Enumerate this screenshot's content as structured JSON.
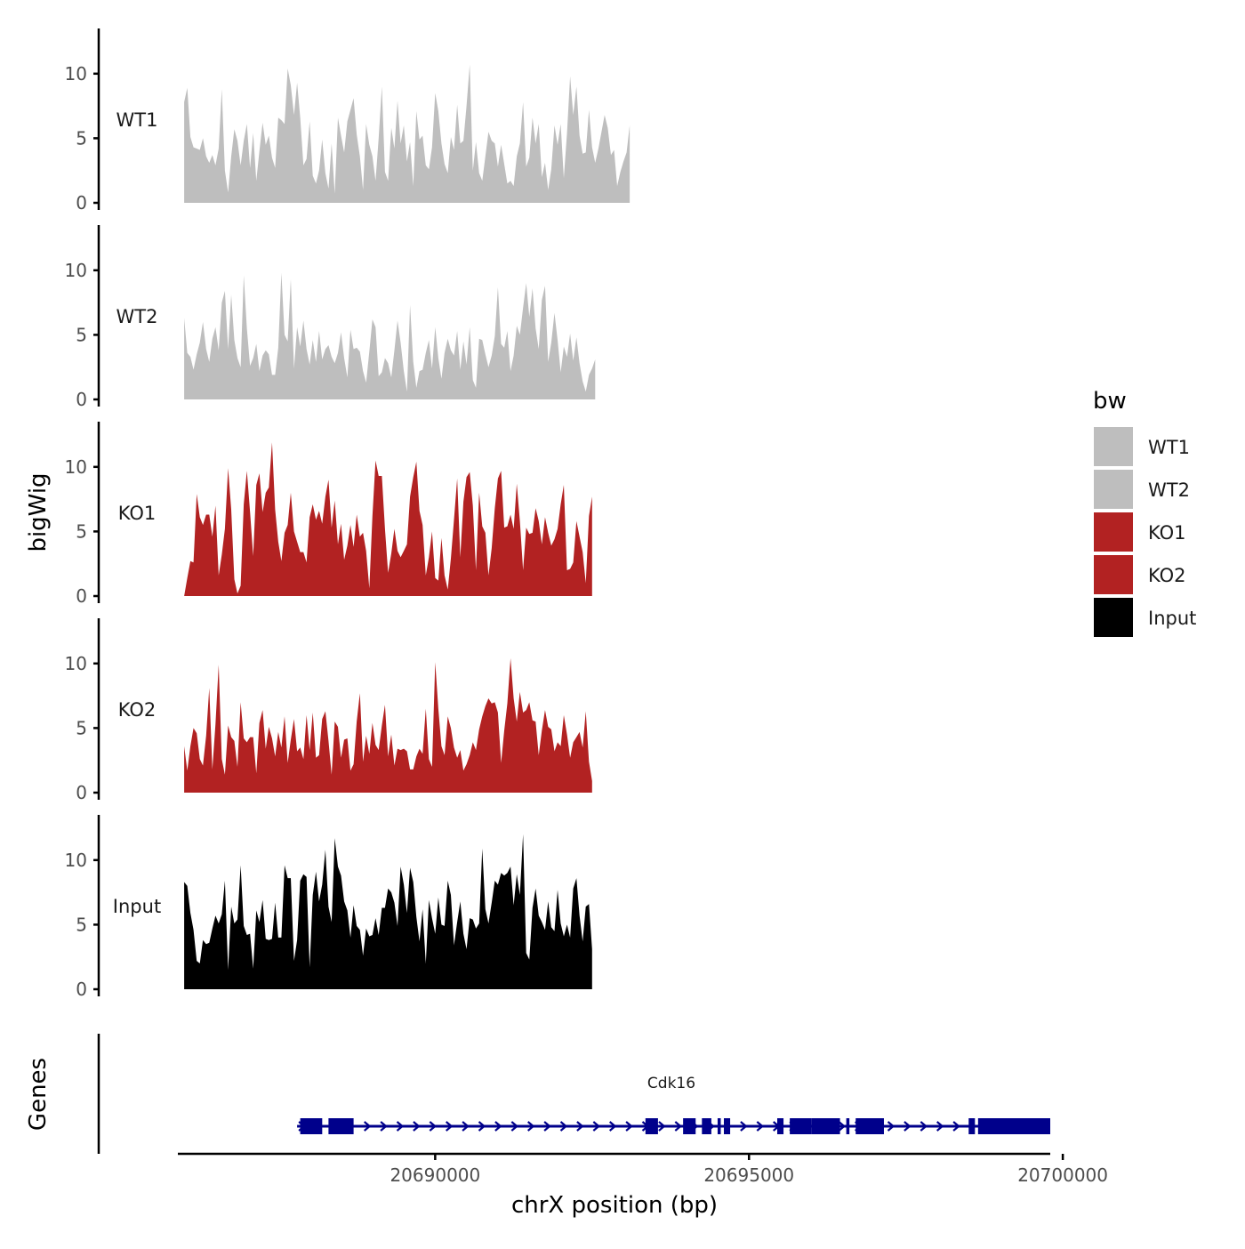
{
  "chart_data": {
    "type": "area",
    "x_axis": {
      "title": "chrX position (bp)",
      "range": [
        20685900,
        20699800
      ],
      "ticks": [
        20690000,
        20695000,
        20700000
      ],
      "tick_labels": [
        "20690000",
        "20695000",
        "20700000"
      ]
    },
    "y_axis": {
      "title": "bigWig",
      "range": [
        0,
        13.5
      ],
      "ticks": [
        0,
        5,
        10
      ],
      "tick_labels": [
        "0",
        "5",
        "10"
      ]
    },
    "genes_axis_title": "Genes",
    "legend": {
      "title": "bw",
      "position": "right",
      "entries": [
        {
          "label": "WT1",
          "color": "#BEBEBE"
        },
        {
          "label": "WT2",
          "color": "#BEBEBE"
        },
        {
          "label": "KO1",
          "color": "#B22222"
        },
        {
          "label": "KO2",
          "color": "#B22222"
        },
        {
          "label": "Input",
          "color": "#000000"
        }
      ]
    },
    "x_start": 20686000,
    "x_step": 50,
    "series": [
      {
        "name": "WT1",
        "color": "#BEBEBE",
        "values": [
          7.8,
          8.9,
          5.1,
          4.3,
          4.2,
          4.1,
          5.0,
          3.6,
          3.1,
          3.7,
          2.9,
          4.2,
          8.8,
          2.5,
          0.8,
          3.6,
          5.7,
          4.8,
          2.9,
          4.8,
          6.1,
          2.7,
          5.4,
          1.7,
          4.0,
          6.2,
          4.5,
          5.2,
          3.5,
          2.7,
          6.6,
          6.4,
          6.1,
          10.4,
          9.1,
          6.8,
          9.3,
          6.6,
          2.9,
          3.4,
          6.3,
          2.1,
          1.5,
          2.5,
          4.9,
          2.3,
          1.1,
          4.6,
          0.7,
          6.6,
          5.2,
          3.9,
          6.3,
          7.2,
          8.1,
          5.3,
          3.6,
          1.0,
          6.1,
          4.5,
          3.6,
          1.7,
          5.0,
          9.0,
          2.4,
          1.7,
          5.8,
          4.2,
          7.9,
          4.6,
          6.0,
          3.2,
          4.7,
          1.3,
          7.1,
          4.9,
          5.2,
          2.9,
          2.6,
          4.3,
          8.5,
          7.1,
          4.6,
          3.0,
          2.3,
          5.1,
          4.1,
          7.6,
          4.6,
          4.8,
          7.5,
          10.7,
          2.5,
          4.7,
          2.3,
          1.7,
          3.6,
          5.5,
          4.8,
          4.6,
          2.8,
          4.5,
          3.0,
          1.5,
          1.7,
          1.3,
          3.6,
          4.6,
          7.8,
          2.8,
          3.5,
          6.6,
          4.6,
          6.1,
          2.0,
          3.1,
          1.0,
          2.6,
          6.0,
          4.5,
          6.1,
          1.9,
          5.4,
          9.8,
          6.8,
          9.0,
          5.2,
          3.8,
          3.9,
          7.2,
          4.3,
          3.1,
          4.2,
          5.5,
          6.8,
          5.8,
          3.7,
          4.1,
          1.3,
          2.4,
          3.2,
          3.9,
          6.0
        ]
      },
      {
        "name": "WT2",
        "color": "#BEBEBE",
        "values": [
          6.3,
          3.6,
          3.3,
          2.3,
          3.5,
          4.4,
          6.0,
          3.9,
          2.9,
          4.7,
          5.6,
          3.8,
          7.5,
          8.4,
          3.9,
          8.1,
          4.6,
          3.2,
          2.5,
          9.6,
          5.5,
          2.6,
          3.2,
          4.3,
          2.2,
          3.4,
          3.8,
          3.5,
          1.9,
          1.9,
          4.0,
          9.8,
          5.0,
          4.5,
          9.3,
          2.4,
          5.6,
          4.1,
          6.1,
          3.9,
          2.7,
          4.6,
          2.9,
          5.3,
          3.1,
          3.9,
          4.2,
          3.3,
          2.8,
          3.6,
          5.2,
          3.2,
          1.7,
          5.4,
          3.9,
          4.0,
          3.7,
          2.2,
          1.3,
          3.7,
          6.2,
          5.6,
          1.8,
          2.1,
          3.2,
          2.8,
          1.7,
          3.8,
          6.1,
          4.4,
          2.2,
          0.6,
          7.3,
          2.9,
          0.9,
          2.2,
          2.3,
          3.6,
          4.6,
          2.4,
          5.6,
          3.2,
          1.6,
          3.6,
          4.7,
          3.8,
          3.4,
          5.3,
          2.3,
          4.5,
          2.7,
          5.6,
          1.5,
          0.9,
          4.7,
          4.6,
          3.5,
          2.5,
          3.4,
          4.9,
          8.7,
          4.3,
          4.0,
          5.3,
          2.2,
          3.4,
          5.7,
          5.0,
          7.1,
          9.0,
          6.4,
          8.6,
          5.5,
          3.9,
          7.7,
          8.8,
          2.9,
          4.4,
          6.7,
          4.6,
          2.1,
          4.1,
          3.3,
          5.1,
          3.0,
          4.8,
          2.8,
          1.4,
          0.6,
          1.9,
          2.4,
          3.1
        ]
      },
      {
        "name": "KO1",
        "color": "#B22222",
        "values": [
          0.0,
          1.4,
          2.7,
          2.6,
          7.9,
          6.1,
          5.5,
          6.3,
          6.3,
          4.6,
          7.0,
          1.6,
          3.2,
          5.2,
          9.9,
          6.7,
          1.3,
          0.2,
          0.8,
          7.1,
          9.7,
          6.5,
          3.1,
          8.6,
          9.5,
          6.5,
          8.0,
          8.4,
          11.9,
          6.7,
          4.2,
          2.7,
          4.9,
          5.5,
          8.0,
          5.0,
          4.2,
          3.4,
          3.4,
          2.6,
          6.1,
          7.1,
          5.9,
          6.6,
          5.6,
          7.7,
          9.0,
          5.3,
          7.4,
          4.0,
          5.6,
          2.8,
          3.9,
          5.5,
          3.8,
          6.3,
          4.6,
          4.9,
          3.5,
          0.6,
          6.2,
          10.5,
          9.3,
          9.3,
          5.2,
          1.8,
          3.3,
          5.2,
          3.5,
          3.0,
          3.5,
          4.0,
          7.7,
          9.2,
          10.4,
          6.6,
          5.5,
          1.6,
          3.0,
          5.0,
          1.4,
          1.2,
          4.5,
          1.6,
          0.5,
          2.9,
          5.9,
          9.1,
          3.0,
          7.3,
          9.2,
          9.6,
          7.0,
          2.0,
          8.0,
          5.4,
          4.9,
          1.6,
          3.7,
          6.8,
          9.1,
          9.7,
          5.3,
          5.4,
          6.3,
          5.2,
          8.7,
          5.8,
          2.0,
          5.3,
          4.8,
          4.9,
          6.8,
          5.8,
          4.0,
          6.1,
          4.9,
          3.9,
          4.4,
          5.2,
          7.1,
          8.6,
          2.0,
          2.1,
          2.6,
          5.8,
          4.6,
          3.4,
          1.0,
          6.2,
          7.7
        ]
      },
      {
        "name": "KO2",
        "color": "#B22222",
        "values": [
          3.6,
          1.7,
          3.6,
          5.0,
          4.6,
          2.6,
          2.1,
          4.4,
          8.1,
          1.8,
          5.3,
          9.9,
          2.6,
          1.4,
          5.2,
          4.3,
          4.0,
          2.0,
          7.0,
          4.2,
          3.9,
          4.3,
          4.3,
          1.5,
          5.4,
          6.4,
          3.4,
          5.1,
          4.2,
          2.8,
          4.7,
          3.5,
          5.9,
          2.3,
          4.1,
          5.7,
          3.2,
          3.5,
          2.6,
          6.0,
          3.3,
          6.2,
          2.7,
          2.9,
          5.7,
          6.3,
          4.0,
          1.4,
          5.5,
          5.1,
          2.7,
          4.1,
          4.2,
          1.7,
          2.2,
          5.5,
          7.7,
          2.4,
          4.4,
          3.0,
          5.4,
          3.7,
          3.3,
          5.2,
          6.8,
          2.8,
          4.5,
          2.1,
          3.4,
          3.3,
          3.4,
          3.2,
          1.8,
          1.8,
          2.8,
          3.4,
          3.0,
          6.5,
          2.6,
          2.0,
          10.1,
          6.5,
          3.6,
          2.9,
          5.9,
          5.0,
          3.5,
          2.7,
          3.3,
          1.7,
          2.2,
          2.9,
          3.9,
          3.3,
          4.9,
          5.9,
          6.7,
          7.3,
          6.9,
          7.0,
          6.2,
          2.3,
          4.8,
          6.9,
          10.4,
          7.3,
          5.5,
          7.8,
          6.2,
          6.4,
          7.0,
          5.6,
          5.5,
          2.9,
          4.8,
          6.4,
          5.1,
          4.9,
          3.2,
          3.9,
          3.6,
          6.0,
          4.5,
          2.7,
          3.9,
          4.3,
          4.7,
          3.5,
          6.3,
          2.4,
          0.9
        ]
      },
      {
        "name": "Input",
        "color": "#000000",
        "values": [
          8.3,
          8.0,
          5.9,
          4.6,
          2.2,
          2.0,
          3.8,
          3.5,
          3.6,
          4.7,
          5.7,
          5.1,
          5.8,
          8.4,
          1.5,
          6.4,
          5.1,
          5.4,
          9.6,
          4.9,
          4.2,
          4.3,
          1.6,
          6.1,
          5.2,
          6.9,
          3.9,
          3.8,
          3.9,
          6.7,
          4.0,
          4.0,
          9.6,
          8.6,
          8.6,
          2.2,
          3.8,
          8.4,
          8.9,
          8.7,
          1.7,
          7.3,
          9.1,
          6.8,
          8.1,
          10.8,
          6.4,
          5.2,
          11.7,
          9.5,
          8.8,
          6.8,
          6.1,
          4.0,
          6.5,
          4.9,
          4.6,
          2.6,
          4.7,
          4.1,
          4.2,
          5.5,
          4.2,
          6.3,
          6.3,
          7.8,
          7.5,
          6.7,
          4.9,
          9.5,
          8.1,
          5.9,
          9.4,
          8.3,
          5.6,
          3.7,
          6.2,
          2.0,
          6.9,
          5.5,
          4.3,
          7.1,
          5.0,
          4.9,
          8.4,
          7.3,
          3.4,
          5.2,
          6.8,
          4.3,
          3.1,
          5.5,
          5.4,
          4.7,
          5.1,
          10.9,
          6.2,
          5.1,
          6.7,
          8.4,
          8.1,
          9.0,
          8.8,
          9.0,
          9.5,
          6.5,
          8.9,
          7.3,
          12.0,
          2.8,
          2.3,
          6.3,
          7.8,
          5.7,
          5.2,
          4.6,
          6.8,
          4.8,
          4.5,
          7.7,
          5.1,
          4.1,
          5.0,
          4.0,
          7.8,
          8.6,
          5.7,
          3.7,
          6.4,
          6.6,
          3.1
        ]
      }
    ],
    "gene": {
      "name": "Cdk16",
      "start": 20687800,
      "end": 20699800,
      "strand": "+",
      "color": "#00008B",
      "exons": [
        [
          20687850,
          20688200
        ],
        [
          20688300,
          20688700
        ],
        [
          20693350,
          20693550
        ],
        [
          20693950,
          20694150
        ],
        [
          20694250,
          20694400
        ],
        [
          20694500,
          20694550
        ],
        [
          20694600,
          20694700
        ],
        [
          20695450,
          20695550
        ],
        [
          20695650,
          20696000
        ],
        [
          20696000,
          20696450
        ],
        [
          20696550,
          20696600
        ],
        [
          20696700,
          20697150
        ],
        [
          20698500,
          20698600
        ],
        [
          20698650,
          20699800
        ]
      ]
    }
  }
}
